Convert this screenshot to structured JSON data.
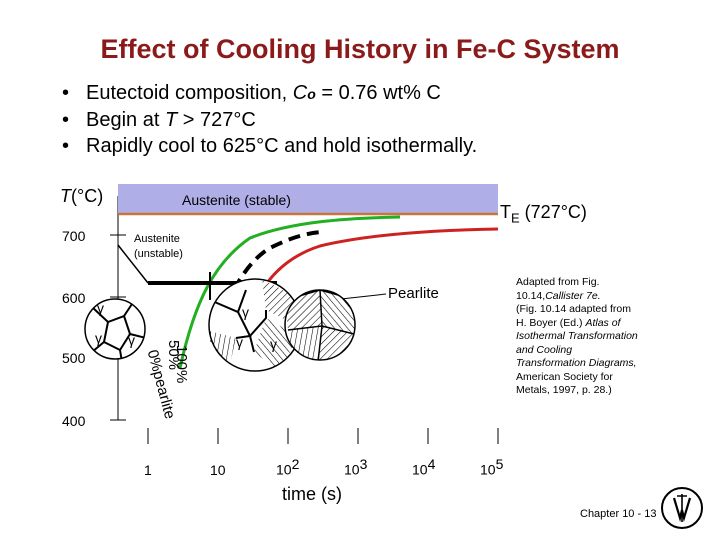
{
  "title": "Effect of Cooling History in Fe-C System",
  "bullets": {
    "b1_pre": "Eutectoid composition, ",
    "b1_var": "C",
    "b1_sub": "o",
    "b1_post": " = 0.76 wt% C",
    "b2_pre": "Begin at ",
    "b2_var": "T",
    "b2_post": " > 727°C",
    "b3": "Rapidly cool to 625°C and hold isothermally."
  },
  "diagram": {
    "y_axis_var": "T",
    "y_axis_unit": "(°C)",
    "y_ticks": [
      "700",
      "600",
      "500",
      "400"
    ],
    "x_ticks": [
      "1",
      "10"
    ],
    "x_tick_pow": [
      {
        "base": "10",
        "exp": "2"
      },
      {
        "base": "10",
        "exp": "3"
      },
      {
        "base": "10",
        "exp": "4"
      },
      {
        "base": "10",
        "exp": "5"
      }
    ],
    "x_axis_label": "time (s)",
    "austenite_stable": "Austenite (stable)",
    "te_base": "T",
    "te_sub": "E",
    "te_value": " (727°C)",
    "austenite_unstable_l1": "Austenite",
    "austenite_unstable_l2": "(unstable)",
    "pearlite": "Pearlite",
    "gamma": "γ",
    "pct_100": "100%",
    "pct_50": "50%",
    "pct_0_pearlite": "0%pearlite",
    "colors": {
      "stable_band": "#b0aee6",
      "te_line": "#c8763a",
      "curve_green": "#22b022",
      "curve_red": "#cc2222",
      "title": "#8b1a1a"
    }
  },
  "adapted": {
    "l1": "Adapted from Fig.",
    "l2_pre": "10.14,",
    "l2_italic": "Callister 7e.",
    "l3": "(Fig. 10.14 adapted from",
    "l4_pre": "H. Boyer (Ed.) ",
    "l4_italic": "Atlas of",
    "l5": "Isothermal Transformation",
    "l6": "and Cooling",
    "l7": "Transformation Diagrams,",
    "l8": "American Society for",
    "l9": "Metals, 1997, p. 28.)"
  },
  "footer": {
    "chapter": "Chapter 10 - 13",
    "logo": "seal-logo"
  }
}
